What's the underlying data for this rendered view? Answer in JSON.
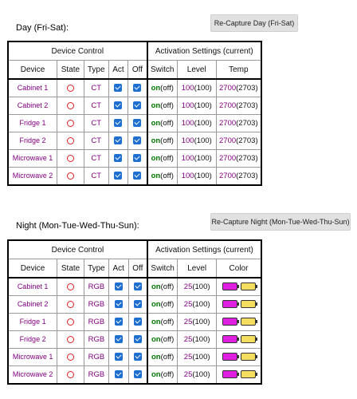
{
  "day": {
    "title": "Day (Fri-Sat):",
    "button": "Re-Capture Day (Fri-Sat)",
    "group_left": "Device Control",
    "group_right": "Activation Settings (current)",
    "columns": [
      "Device",
      "State",
      "Type",
      "Act",
      "Off",
      "Switch",
      "Level",
      "Temp"
    ],
    "rows": [
      {
        "device": "Cabinet 1",
        "type": "CT",
        "switch_on": "on",
        "switch_cur": "(off)",
        "level": "100",
        "level_cur": "(100)",
        "temp": "2700",
        "temp_cur": "(2703)"
      },
      {
        "device": "Cabinet 2",
        "type": "CT",
        "switch_on": "on",
        "switch_cur": "(off)",
        "level": "100",
        "level_cur": "(100)",
        "temp": "2700",
        "temp_cur": "(2703)"
      },
      {
        "device": "Fridge 1",
        "type": "CT",
        "switch_on": "on",
        "switch_cur": "(off)",
        "level": "100",
        "level_cur": "(100)",
        "temp": "2700",
        "temp_cur": "(2703)"
      },
      {
        "device": "Fridge 2",
        "type": "CT",
        "switch_on": "on",
        "switch_cur": "(off)",
        "level": "100",
        "level_cur": "(100)",
        "temp": "2700",
        "temp_cur": "(2703)"
      },
      {
        "device": "Microwave 1",
        "type": "CT",
        "switch_on": "on",
        "switch_cur": "(off)",
        "level": "100",
        "level_cur": "(100)",
        "temp": "2700",
        "temp_cur": "(2703)"
      },
      {
        "device": "Microwave 2",
        "type": "CT",
        "switch_on": "on",
        "switch_cur": "(off)",
        "level": "100",
        "level_cur": "(100)",
        "temp": "2700",
        "temp_cur": "(2703)"
      }
    ]
  },
  "night": {
    "title": "Night (Mon-Tue-Wed-Thu-Sun):",
    "button": "Re-Capture Night (Mon-Tue-Wed-Thu-Sun)",
    "group_left": "Device Control",
    "group_right": "Activation Settings (current)",
    "columns": [
      "Device",
      "State",
      "Type",
      "Act",
      "Off",
      "Switch",
      "Level",
      "Color"
    ],
    "rows": [
      {
        "device": "Cabinet 1",
        "type": "RGB",
        "switch_on": "on",
        "switch_cur": "(off)",
        "level": "25",
        "level_cur": "(100)"
      },
      {
        "device": "Cabinet 2",
        "type": "RGB",
        "switch_on": "on",
        "switch_cur": "(off)",
        "level": "25",
        "level_cur": "(100)"
      },
      {
        "device": "Fridge 1",
        "type": "RGB",
        "switch_on": "on",
        "switch_cur": "(off)",
        "level": "25",
        "level_cur": "(100)"
      },
      {
        "device": "Fridge 2",
        "type": "RGB",
        "switch_on": "on",
        "switch_cur": "(off)",
        "level": "25",
        "level_cur": "(100)"
      },
      {
        "device": "Microwave 1",
        "type": "RGB",
        "switch_on": "on",
        "switch_cur": "(off)",
        "level": "25",
        "level_cur": "(100)"
      },
      {
        "device": "Microwave 2",
        "type": "RGB",
        "switch_on": "on",
        "switch_cur": "(off)",
        "level": "25",
        "level_cur": "(100)"
      }
    ],
    "color_set": "#e020e0",
    "color_current": "#f5dd60"
  },
  "state_color": "#e02020",
  "checkbox_color": "#1f6fd1",
  "checkboxes_checked": true
}
